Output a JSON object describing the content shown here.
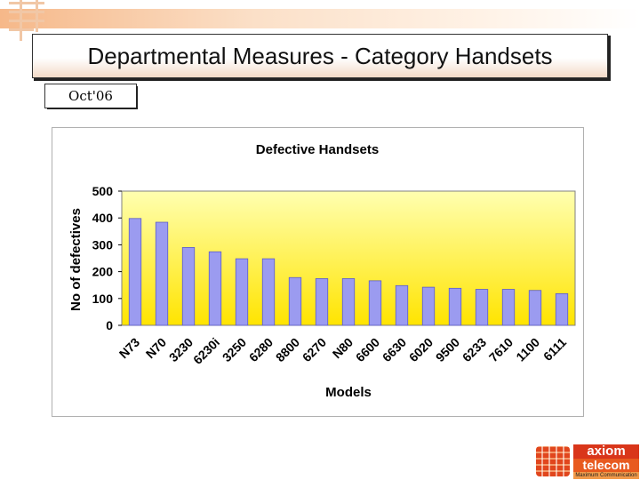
{
  "slide": {
    "title": "Departmental Measures  - Category Handsets",
    "date": "Oct'06"
  },
  "colors": {
    "bar_fill": "#9b9bf0",
    "bar_stroke": "#5c5cc6",
    "plot_top": "#ffffb0",
    "plot_bottom": "#ffe400",
    "accent": "#e1461d"
  },
  "logo": {
    "name": "axiom",
    "line2": "telecom",
    "tagline": "Maximum Communication"
  },
  "chart_data": {
    "type": "bar",
    "title": "Defective Handsets",
    "xlabel": "Models",
    "ylabel": "No of defectives",
    "ylim": [
      0,
      500
    ],
    "yticks": [
      0,
      100,
      200,
      300,
      400,
      500
    ],
    "grid": false,
    "legend": "none",
    "categories": [
      "N73",
      "N70",
      "3230",
      "6230i",
      "3250",
      "6280",
      "8800",
      "6270",
      "N80",
      "6600",
      "6630",
      "6020",
      "9500",
      "6233",
      "7610",
      "1100",
      "6111"
    ],
    "values": [
      398,
      384,
      290,
      274,
      248,
      248,
      178,
      174,
      174,
      166,
      148,
      142,
      138,
      134,
      134,
      130,
      118
    ]
  }
}
